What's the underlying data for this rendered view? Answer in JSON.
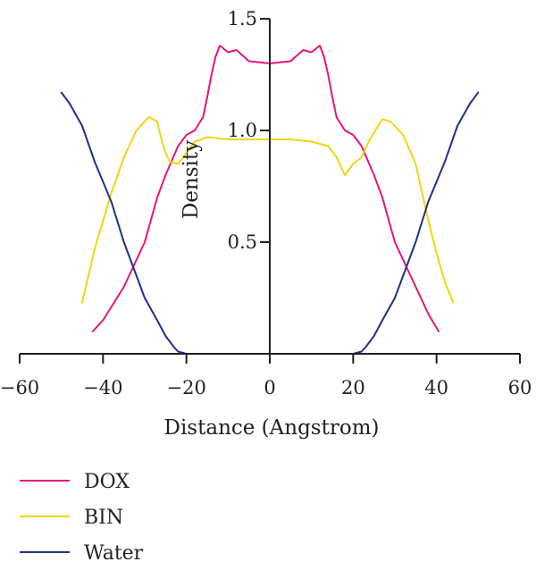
{
  "chart_data": {
    "type": "line",
    "xlabel": "Distance (Angstrom)",
    "ylabel": "Density",
    "xlim": [
      -60,
      60
    ],
    "ylim": [
      0,
      1.5
    ],
    "x_ticks": [
      -60,
      -40,
      -20,
      0,
      20,
      40,
      60
    ],
    "x_tick_labels": [
      "−60",
      "−40",
      "−20",
      "0",
      "20",
      "40",
      "60"
    ],
    "y_ticks": [
      0.5,
      1.0,
      1.5
    ],
    "y_tick_labels": [
      "0.5",
      "1.0",
      "1.5"
    ],
    "grid": false,
    "legend_position": "bottom-left",
    "series": [
      {
        "name": "DOX",
        "color": "#e8147c",
        "points": [
          [
            -42.5,
            0.1
          ],
          [
            -40,
            0.15
          ],
          [
            -35,
            0.3
          ],
          [
            -30,
            0.5
          ],
          [
            -27,
            0.7
          ],
          [
            -25,
            0.8
          ],
          [
            -22,
            0.93
          ],
          [
            -20,
            0.98
          ],
          [
            -18,
            1.0
          ],
          [
            -16,
            1.06
          ],
          [
            -15,
            1.15
          ],
          [
            -14,
            1.25
          ],
          [
            -13,
            1.33
          ],
          [
            -12,
            1.38
          ],
          [
            -10,
            1.35
          ],
          [
            -8,
            1.36
          ],
          [
            -5,
            1.31
          ],
          [
            0,
            1.3
          ],
          [
            5,
            1.31
          ],
          [
            8,
            1.36
          ],
          [
            10,
            1.35
          ],
          [
            12,
            1.38
          ],
          [
            13,
            1.33
          ],
          [
            14,
            1.25
          ],
          [
            15,
            1.15
          ],
          [
            16,
            1.06
          ],
          [
            18,
            1.0
          ],
          [
            20,
            0.98
          ],
          [
            22,
            0.93
          ],
          [
            25,
            0.8
          ],
          [
            27,
            0.7
          ],
          [
            30,
            0.5
          ],
          [
            35,
            0.3
          ],
          [
            38,
            0.18
          ],
          [
            40.5,
            0.1
          ]
        ]
      },
      {
        "name": "BIN",
        "color": "#f2d50f",
        "points": [
          [
            -45,
            0.23
          ],
          [
            -42,
            0.47
          ],
          [
            -38,
            0.72
          ],
          [
            -35,
            0.88
          ],
          [
            -32,
            1.0
          ],
          [
            -29,
            1.06
          ],
          [
            -27,
            1.04
          ],
          [
            -26,
            0.96
          ],
          [
            -25,
            0.9
          ],
          [
            -24,
            0.86
          ],
          [
            -22,
            0.85
          ],
          [
            -20,
            0.9
          ],
          [
            -18,
            0.95
          ],
          [
            -15,
            0.97
          ],
          [
            -10,
            0.96
          ],
          [
            -5,
            0.96
          ],
          [
            0,
            0.96
          ],
          [
            5,
            0.96
          ],
          [
            10,
            0.95
          ],
          [
            14,
            0.93
          ],
          [
            16,
            0.88
          ],
          [
            18,
            0.8
          ],
          [
            20,
            0.85
          ],
          [
            22,
            0.88
          ],
          [
            24,
            0.96
          ],
          [
            27,
            1.05
          ],
          [
            29,
            1.04
          ],
          [
            32,
            0.98
          ],
          [
            35,
            0.85
          ],
          [
            38,
            0.6
          ],
          [
            40,
            0.45
          ],
          [
            42,
            0.32
          ],
          [
            44,
            0.23
          ]
        ]
      },
      {
        "name": "Water",
        "color": "#1f2f8c",
        "points": [
          [
            -50,
            1.17
          ],
          [
            -48,
            1.12
          ],
          [
            -45,
            1.02
          ],
          [
            -42,
            0.86
          ],
          [
            -38,
            0.68
          ],
          [
            -35,
            0.5
          ],
          [
            -32,
            0.35
          ],
          [
            -30,
            0.25
          ],
          [
            -27,
            0.15
          ],
          [
            -25,
            0.08
          ],
          [
            -23,
            0.03
          ],
          [
            -22,
            0.01
          ],
          [
            -20,
            0
          ],
          [
            -10,
            0
          ],
          [
            0,
            0
          ],
          [
            10,
            0
          ],
          [
            20,
            0
          ],
          [
            22,
            0.01
          ],
          [
            23,
            0.03
          ],
          [
            25,
            0.08
          ],
          [
            27,
            0.15
          ],
          [
            30,
            0.25
          ],
          [
            32,
            0.35
          ],
          [
            35,
            0.5
          ],
          [
            38,
            0.68
          ],
          [
            42,
            0.86
          ],
          [
            45,
            1.02
          ],
          [
            48,
            1.12
          ],
          [
            50,
            1.17
          ]
        ]
      }
    ]
  }
}
